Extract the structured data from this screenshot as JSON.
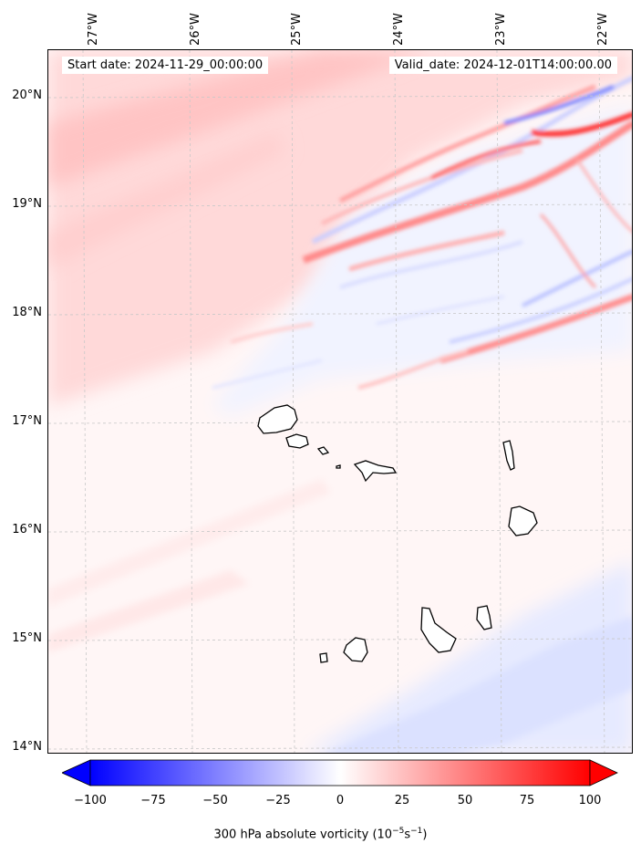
{
  "map": {
    "start_date_label": "Start date: 2024-11-29_00:00:00",
    "valid_date_label": "Valid_date: 2024-12-01T14:00:00.00",
    "lon_labels": [
      "27°W",
      "26°W",
      "25°W",
      "24°W",
      "23°W",
      "22°W"
    ],
    "lat_labels": [
      "20°N",
      "19°N",
      "18°N",
      "17°N",
      "16°N",
      "15°N",
      "14°N"
    ],
    "colors": {
      "low": "#0000ff",
      "mid": "#ffffff",
      "high": "#ff0000",
      "coast": "#000000",
      "grid": "#c8c8c8"
    }
  },
  "colorbar": {
    "ticks": [
      "−100",
      "−75",
      "−50",
      "−25",
      "0",
      "25",
      "50",
      "75",
      "100"
    ],
    "min": -100,
    "max": 100,
    "label_prefix": "300 hPa absolute vorticity (10",
    "label_exp1": "−5",
    "label_mid": "s",
    "label_exp2": "−1",
    "label_suffix": ")"
  }
}
